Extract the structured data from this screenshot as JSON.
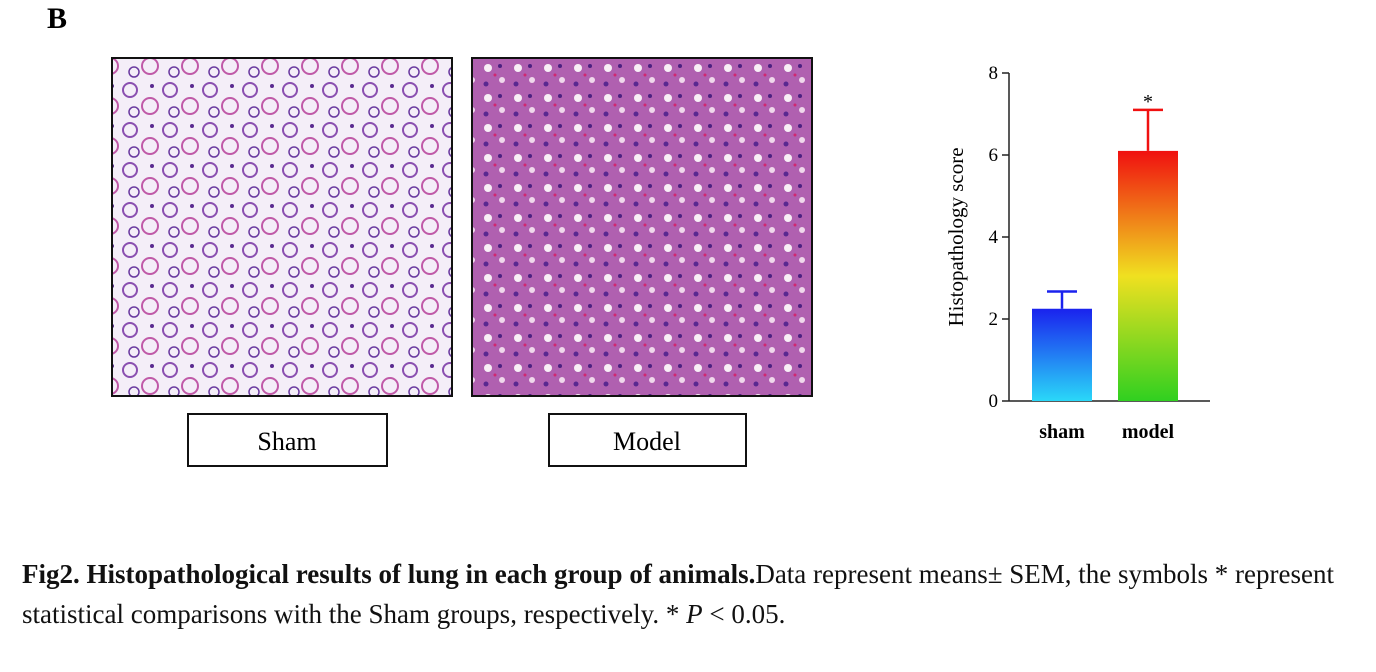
{
  "panel_label": "B",
  "images": [
    {
      "label": "Sham"
    },
    {
      "label": "Model"
    }
  ],
  "chart_data": {
    "type": "bar",
    "ylabel": "Histopathology score",
    "categories": [
      "sham",
      "model"
    ],
    "values": [
      2.25,
      6.1
    ],
    "errors": [
      0.42,
      1.0
    ],
    "significance": [
      null,
      "*"
    ],
    "gradients": [
      [
        "#1a22ee",
        "#2ad8f8"
      ],
      [
        "#f01010",
        "#f0e020",
        "#30d020"
      ]
    ],
    "ylim": [
      0,
      8
    ],
    "yticks": [
      0,
      2,
      4,
      6,
      8
    ],
    "grid": false
  },
  "caption": {
    "bold": "Fig2. Histopathological results of lung in each group of animals.",
    "text": "Data represent means± SEM, the symbols * represent statistical comparisons with the Sham groups, respectively. * ",
    "italic": "P",
    "end": " < 0.05."
  }
}
